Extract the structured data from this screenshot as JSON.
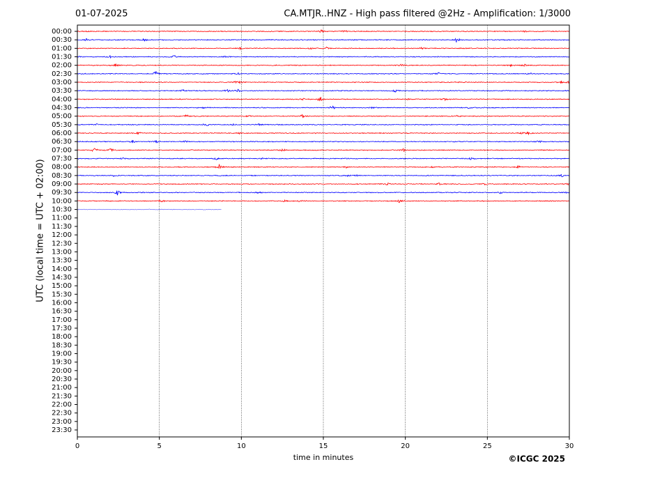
{
  "chart_data": {
    "type": "helicorder",
    "title_left": "01-07-2025",
    "title": "CA.MTJR..HNZ - High pass filtered @2Hz - Amplification: 1/3000",
    "ylabel": "UTC (local time = UTC + 02:00)",
    "xlabel": "time in minutes",
    "credit": "©ICGC 2025",
    "categories": [
      "00:00",
      "00:30",
      "01:00",
      "01:30",
      "02:00",
      "02:30",
      "03:00",
      "03:30",
      "04:00",
      "04:30",
      "05:00",
      "05:30",
      "06:00",
      "06:30",
      "07:00",
      "07:30",
      "08:00",
      "08:30",
      "09:00",
      "09:30",
      "10:00",
      "10:30",
      "11:00",
      "11:30",
      "12:00",
      "12:30",
      "13:00",
      "13:30",
      "14:00",
      "14:30",
      "15:00",
      "15:30",
      "16:00",
      "16:30",
      "17:00",
      "17:30",
      "18:00",
      "18:30",
      "19:00",
      "19:30",
      "20:00",
      "20:30",
      "21:00",
      "21:30",
      "22:00",
      "22:30",
      "23:00",
      "23:30"
    ],
    "traces": [
      {
        "color": "#ff0000",
        "end": 30
      },
      {
        "color": "#0000ff",
        "end": 30
      },
      {
        "color": "#ff0000",
        "end": 30
      },
      {
        "color": "#0000ff",
        "end": 30
      },
      {
        "color": "#ff0000",
        "end": 30
      },
      {
        "color": "#0000ff",
        "end": 30
      },
      {
        "color": "#ff0000",
        "end": 30
      },
      {
        "color": "#0000ff",
        "end": 30
      },
      {
        "color": "#ff0000",
        "end": 30
      },
      {
        "color": "#0000ff",
        "end": 30
      },
      {
        "color": "#ff0000",
        "end": 30
      },
      {
        "color": "#0000ff",
        "end": 30
      },
      {
        "color": "#ff0000",
        "end": 30
      },
      {
        "color": "#0000ff",
        "end": 30
      },
      {
        "color": "#ff0000",
        "end": 30
      },
      {
        "color": "#0000ff",
        "end": 30
      },
      {
        "color": "#ff0000",
        "end": 30
      },
      {
        "color": "#0000ff",
        "end": 30
      },
      {
        "color": "#ff0000",
        "end": 30
      },
      {
        "color": "#0000ff",
        "end": 30
      },
      {
        "color": "#ff0000",
        "end": 30
      },
      {
        "color": "#0000ff",
        "end": 8.8
      }
    ],
    "xlim": [
      0,
      30
    ],
    "xticks": [
      0,
      5,
      10,
      15,
      20,
      25,
      30
    ],
    "grid": true
  }
}
